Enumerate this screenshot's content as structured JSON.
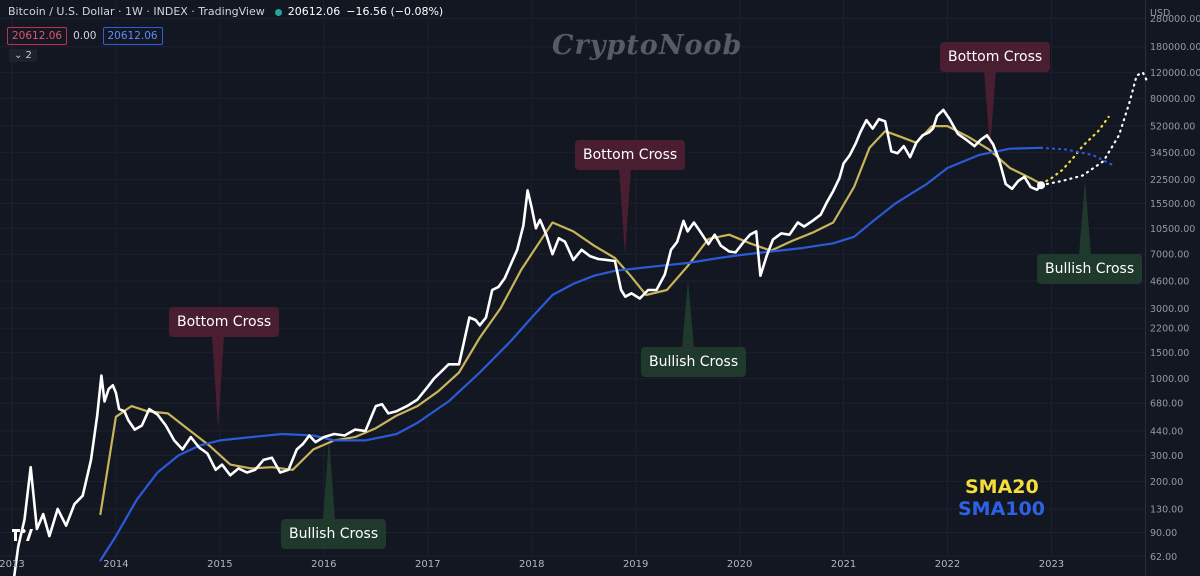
{
  "header": {
    "symbol": "Bitcoin / U.S. Dollar · 1W · INDEX · TradingView",
    "price": "20612.06",
    "change": "−16.56 (−0.08%)"
  },
  "badges": {
    "sma20": "20612.06",
    "volume": "0.00",
    "sma100": "20612.06",
    "collapse": "⌄ 2"
  },
  "watermark": "CryptoNoob",
  "annotations": {
    "bottom_cross_1": "Bottom Cross",
    "bottom_cross_2": "Bottom Cross",
    "bottom_cross_3": "Bottom Cross",
    "bullish_cross_1": "Bullish Cross",
    "bullish_cross_2": "Bullish Cross",
    "bullish_cross_3": "Bullish Cross"
  },
  "legend": {
    "sma20": "SMA20",
    "sma100": "SMA100"
  },
  "colors": {
    "background": "#131722",
    "price": "#ffffff",
    "sma20": "#c9b45a",
    "sma100": "#2a5bd7",
    "bear_box": "#4a1e31",
    "bull_box": "#1f3a2c",
    "legend_sma20": "#f5dd3b",
    "legend_sma100": "#2d62e8"
  },
  "chart_data": {
    "type": "line",
    "yscale": "log",
    "ylim": [
      50,
      330000
    ],
    "xlim": [
      2013.0,
      2023.9
    ],
    "currency_label": "USD",
    "y_ticks": [
      "280000.00",
      "180000.00",
      "120000.00",
      "80000.00",
      "52000.00",
      "34500.00",
      "22500.00",
      "15500.00",
      "10500.00",
      "7000.00",
      "4600.00",
      "3000.00",
      "2200.00",
      "1500.00",
      "1000.00",
      "680.00",
      "440.00",
      "300.00",
      "200.00",
      "130.00",
      "90.00",
      "62.00"
    ],
    "y_tick_values": [
      280000,
      180000,
      120000,
      80000,
      52000,
      34500,
      22500,
      15500,
      10500,
      7000,
      4600,
      3000,
      2200,
      1500,
      1000,
      680,
      440,
      300,
      200,
      130,
      90,
      62
    ],
    "x_ticks": [
      "2013",
      "2014",
      "2015",
      "2016",
      "2017",
      "2018",
      "2019",
      "2020",
      "2021",
      "2022",
      "2023"
    ],
    "series": [
      {
        "name": "SMA20",
        "dotted": false,
        "x": [
          2013.85,
          2014.0,
          2014.15,
          2014.3,
          2014.5,
          2014.7,
          2014.9,
          2015.1,
          2015.3,
          2015.5,
          2015.7,
          2015.9,
          2016.1,
          2016.3,
          2016.5,
          2016.7,
          2016.9,
          2017.1,
          2017.3,
          2017.5,
          2017.7,
          2017.9,
          2018.1,
          2018.2,
          2018.4,
          2018.6,
          2018.8,
          2018.95,
          2019.1,
          2019.3,
          2019.5,
          2019.7,
          2019.9,
          2020.1,
          2020.3,
          2020.5,
          2020.7,
          2020.9,
          2021.1,
          2021.25,
          2021.4,
          2021.55,
          2021.7,
          2021.85,
          2022.0,
          2022.2,
          2022.4,
          2022.6,
          2022.8,
          2022.9
        ],
        "y": [
          120,
          550,
          650,
          600,
          580,
          450,
          350,
          260,
          245,
          250,
          240,
          330,
          380,
          400,
          460,
          560,
          650,
          820,
          1100,
          1900,
          3000,
          5500,
          9000,
          11500,
          10000,
          8000,
          6600,
          5000,
          3700,
          4000,
          5800,
          8900,
          9500,
          8300,
          7400,
          8600,
          9800,
          11500,
          20000,
          37000,
          48000,
          44000,
          40000,
          52000,
          52000,
          44000,
          36000,
          27000,
          23000,
          21000
        ]
      },
      {
        "name": "SMA100",
        "dotted": false,
        "x": [
          2013.85,
          2014.0,
          2014.2,
          2014.4,
          2014.6,
          2014.8,
          2015.0,
          2015.3,
          2015.6,
          2015.9,
          2016.1,
          2016.4,
          2016.7,
          2016.9,
          2017.2,
          2017.5,
          2017.8,
          2018.0,
          2018.2,
          2018.4,
          2018.6,
          2018.8,
          2019.0,
          2019.2,
          2019.5,
          2019.8,
          2020.0,
          2020.3,
          2020.6,
          2020.9,
          2021.1,
          2021.3,
          2021.5,
          2021.8,
          2022.0,
          2022.3,
          2022.6,
          2022.9
        ],
        "y": [
          58,
          85,
          150,
          230,
          300,
          350,
          380,
          400,
          420,
          410,
          380,
          380,
          420,
          500,
          700,
          1100,
          1800,
          2600,
          3700,
          4400,
          5000,
          5400,
          5600,
          5800,
          6100,
          6600,
          6900,
          7300,
          7700,
          8300,
          9200,
          12000,
          15500,
          21000,
          27000,
          33000,
          36500,
          37000
        ]
      },
      {
        "name": "SMA20 projection",
        "dotted": true,
        "x": [
          2022.9,
          2023.0,
          2023.1,
          2023.2,
          2023.3,
          2023.45,
          2023.55
        ],
        "y": [
          21000,
          23000,
          26000,
          31000,
          38000,
          48000,
          60000
        ]
      },
      {
        "name": "SMA100 projection",
        "dotted": true,
        "x": [
          2022.9,
          2023.15,
          2023.4,
          2023.6
        ],
        "y": [
          37000,
          36000,
          33000,
          28000
        ]
      },
      {
        "name": "Price projection",
        "dotted": true,
        "x": [
          2022.9,
          2023.1,
          2023.3,
          2023.5,
          2023.65,
          2023.75,
          2023.82,
          2023.88,
          2023.92
        ],
        "y": [
          20600,
          22000,
          24000,
          30000,
          45000,
          75000,
          115000,
          120000,
          105000
        ]
      },
      {
        "name": "Price",
        "dotted": false,
        "x": [
          2013.0,
          2013.06,
          2013.12,
          2013.18,
          2013.24,
          2013.3,
          2013.36,
          2013.44,
          2013.52,
          2013.6,
          2013.68,
          2013.76,
          2013.82,
          2013.86,
          2013.89,
          2013.93,
          2013.97,
          2014.0,
          2014.03,
          2014.08,
          2014.12,
          2014.18,
          2014.25,
          2014.32,
          2014.4,
          2014.48,
          2014.56,
          2014.64,
          2014.72,
          2014.8,
          2014.88,
          2014.96,
          2015.02,
          2015.1,
          2015.18,
          2015.26,
          2015.34,
          2015.42,
          2015.5,
          2015.58,
          2015.66,
          2015.74,
          2015.8,
          2015.86,
          2015.92,
          2016.0,
          2016.1,
          2016.2,
          2016.3,
          2016.4,
          2016.5,
          2016.56,
          2016.62,
          2016.7,
          2016.8,
          2016.9,
          2017.0,
          2017.06,
          2017.12,
          2017.2,
          2017.3,
          2017.4,
          2017.46,
          2017.5,
          2017.56,
          2017.62,
          2017.68,
          2017.74,
          2017.8,
          2017.86,
          2017.92,
          2017.96,
          2018.0,
          2018.04,
          2018.08,
          2018.14,
          2018.2,
          2018.26,
          2018.32,
          2018.4,
          2018.48,
          2018.56,
          2018.64,
          2018.72,
          2018.8,
          2018.86,
          2018.9,
          2018.96,
          2019.04,
          2019.12,
          2019.2,
          2019.28,
          2019.34,
          2019.4,
          2019.46,
          2019.5,
          2019.56,
          2019.62,
          2019.7,
          2019.76,
          2019.82,
          2019.9,
          2019.96,
          2020.04,
          2020.1,
          2020.16,
          2020.2,
          2020.26,
          2020.32,
          2020.4,
          2020.48,
          2020.56,
          2020.62,
          2020.7,
          2020.78,
          2020.84,
          2020.9,
          2020.96,
          2021.0,
          2021.06,
          2021.12,
          2021.16,
          2021.22,
          2021.28,
          2021.34,
          2021.4,
          2021.46,
          2021.52,
          2021.58,
          2021.64,
          2021.7,
          2021.76,
          2021.82,
          2021.86,
          2021.9,
          2021.96,
          2022.02,
          2022.1,
          2022.18,
          2022.26,
          2022.32,
          2022.38,
          2022.44,
          2022.5,
          2022.56,
          2022.62,
          2022.68,
          2022.74,
          2022.8,
          2022.86,
          2022.9
        ],
        "y": [
          35,
          72,
          110,
          250,
          95,
          120,
          85,
          130,
          100,
          140,
          160,
          280,
          560,
          1050,
          700,
          850,
          900,
          800,
          620,
          600,
          520,
          450,
          480,
          620,
          570,
          480,
          380,
          330,
          400,
          340,
          310,
          240,
          260,
          220,
          245,
          230,
          240,
          280,
          290,
          230,
          240,
          330,
          360,
          410,
          370,
          400,
          420,
          410,
          450,
          440,
          650,
          670,
          580,
          600,
          650,
          720,
          880,
          1000,
          1100,
          1250,
          1250,
          2600,
          2500,
          2300,
          2600,
          4000,
          4200,
          4800,
          6000,
          7500,
          11000,
          19000,
          14500,
          10500,
          12000,
          9500,
          7000,
          9000,
          8500,
          6400,
          7500,
          6800,
          6500,
          6400,
          6300,
          4000,
          3600,
          3800,
          3500,
          4000,
          4000,
          5100,
          7500,
          8500,
          11800,
          10000,
          11500,
          10000,
          8200,
          9500,
          8000,
          7300,
          7200,
          8500,
          9500,
          10000,
          5000,
          6800,
          8800,
          9700,
          9500,
          11500,
          10800,
          11800,
          13000,
          15800,
          18800,
          23000,
          29000,
          33000,
          40000,
          47000,
          57000,
          50000,
          58000,
          56000,
          35000,
          34000,
          38000,
          32000,
          40000,
          45000,
          47000,
          50000,
          61000,
          67000,
          58000,
          46000,
          42000,
          38000,
          42000,
          45000,
          39000,
          30000,
          21000,
          19500,
          22000,
          23500,
          20000,
          19200,
          20612
        ]
      }
    ]
  }
}
